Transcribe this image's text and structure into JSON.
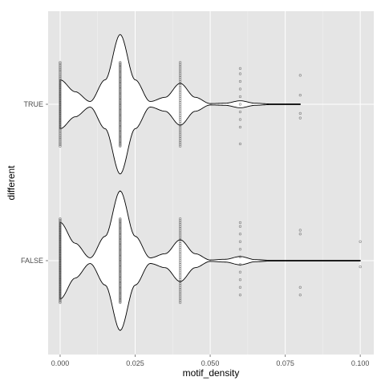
{
  "chart_data": {
    "type": "violin",
    "title": "",
    "xlabel": "motif_density",
    "ylabel": "different",
    "xlim": [
      -0.004,
      0.1045
    ],
    "x_ticks": [
      0.0,
      0.025,
      0.05,
      0.075,
      0.1
    ],
    "x_tick_labels": [
      "0.000",
      "0.025",
      "0.050",
      "0.075",
      "0.100"
    ],
    "categories": [
      "FALSE",
      "TRUE"
    ],
    "grid": true,
    "legend": "none",
    "colors": {
      "panel": "#e5e5e5",
      "grid": "#ffffff",
      "violin_fill": "#ffffff",
      "violin_line": "#000000",
      "points": "#555555"
    },
    "series": [
      {
        "name": "TRUE",
        "max_value": 0.08,
        "density": [
          {
            "x": 0.0,
            "w": 0.35
          },
          {
            "x": 0.005,
            "w": 0.18
          },
          {
            "x": 0.01,
            "w": 0.04
          },
          {
            "x": 0.015,
            "w": 0.35
          },
          {
            "x": 0.02,
            "w": 1.0
          },
          {
            "x": 0.025,
            "w": 0.35
          },
          {
            "x": 0.03,
            "w": 0.04
          },
          {
            "x": 0.035,
            "w": 0.1
          },
          {
            "x": 0.04,
            "w": 0.3
          },
          {
            "x": 0.045,
            "w": 0.1
          },
          {
            "x": 0.05,
            "w": 0.01
          },
          {
            "x": 0.055,
            "w": 0.015
          },
          {
            "x": 0.06,
            "w": 0.05
          },
          {
            "x": 0.065,
            "w": 0.015
          },
          {
            "x": 0.07,
            "w": 0.005
          },
          {
            "x": 0.08,
            "w": 0.005
          }
        ],
        "points": [
          {
            "x": 0.0,
            "y_spread": 0.55,
            "count": 60
          },
          {
            "x": 0.02,
            "y_spread": 0.55,
            "count": 90
          },
          {
            "x": 0.04,
            "y_spread": 0.55,
            "count": 45
          },
          {
            "x": 0.06,
            "y_spread": [
              -0.47,
              -0.4,
              -0.3,
              -0.2,
              -0.1,
              0.0,
              0.1,
              0.2,
              0.3,
              0.52
            ]
          },
          {
            "x": 0.08,
            "y_spread": [
              -0.38,
              -0.12,
              0.12,
              0.18
            ]
          }
        ]
      },
      {
        "name": "FALSE",
        "max_value": 0.1,
        "density": [
          {
            "x": 0.0,
            "w": 0.55
          },
          {
            "x": 0.005,
            "w": 0.25
          },
          {
            "x": 0.01,
            "w": 0.04
          },
          {
            "x": 0.015,
            "w": 0.35
          },
          {
            "x": 0.02,
            "w": 1.0
          },
          {
            "x": 0.025,
            "w": 0.35
          },
          {
            "x": 0.03,
            "w": 0.04
          },
          {
            "x": 0.035,
            "w": 0.1
          },
          {
            "x": 0.04,
            "w": 0.3
          },
          {
            "x": 0.045,
            "w": 0.1
          },
          {
            "x": 0.05,
            "w": 0.01
          },
          {
            "x": 0.055,
            "w": 0.02
          },
          {
            "x": 0.06,
            "w": 0.06
          },
          {
            "x": 0.065,
            "w": 0.015
          },
          {
            "x": 0.07,
            "w": 0.005
          },
          {
            "x": 0.1,
            "w": 0.005
          }
        ],
        "points": [
          {
            "x": 0.0,
            "y_spread": 0.55,
            "count": 70
          },
          {
            "x": 0.02,
            "y_spread": 0.55,
            "count": 90
          },
          {
            "x": 0.04,
            "y_spread": 0.55,
            "count": 45
          },
          {
            "x": 0.06,
            "y_spread": [
              -0.5,
              -0.45,
              -0.35,
              -0.25,
              -0.15,
              -0.05,
              0.05,
              0.15,
              0.25,
              0.35,
              0.45
            ]
          },
          {
            "x": 0.08,
            "y_spread": [
              -0.4,
              -0.35,
              0.35,
              0.45
            ]
          },
          {
            "x": 0.1,
            "y_spread": [
              -0.25,
              0.08
            ]
          }
        ]
      }
    ]
  }
}
